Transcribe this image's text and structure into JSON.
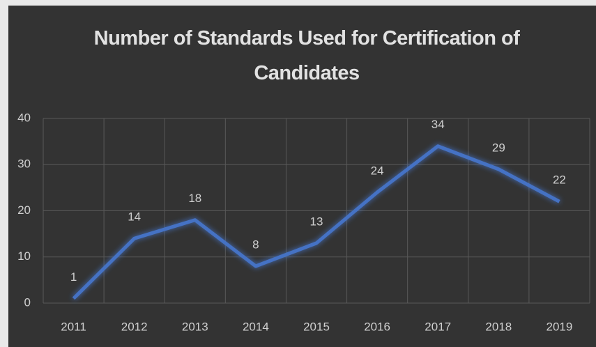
{
  "chart_data": {
    "type": "line",
    "title": "Number of Standards Used for Certification of Candidates",
    "categories": [
      "2011",
      "2012",
      "2013",
      "2014",
      "2015",
      "2016",
      "2017",
      "2018",
      "2019"
    ],
    "values": [
      1,
      14,
      18,
      8,
      13,
      24,
      34,
      29,
      22
    ],
    "color": "#4472c4",
    "ylim": [
      0,
      40
    ],
    "yticks": [
      0,
      10,
      20,
      30,
      40
    ],
    "grid": true
  }
}
